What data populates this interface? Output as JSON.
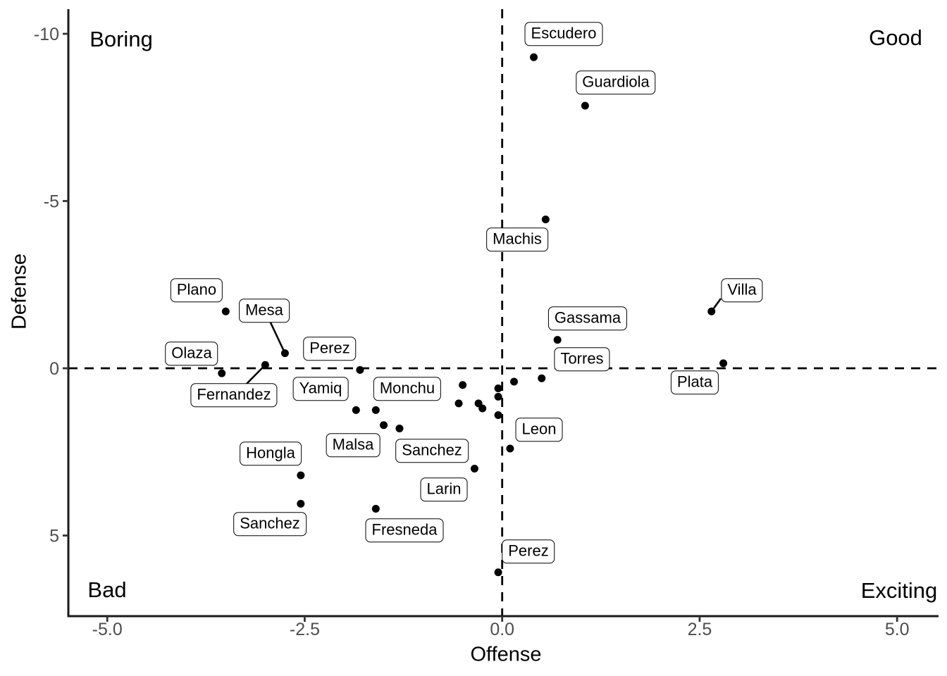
{
  "colors": {
    "background": "#ffffff",
    "point": "#000000",
    "axis_line": "#1a1a1a",
    "tick_mark": "#333333",
    "tick_label": "#4d4d4d",
    "reference_line": "#000000",
    "label_box_fill": "#ffffff",
    "label_box_border": "#000000"
  },
  "chart_data": {
    "type": "scatter",
    "title": "",
    "xlabel": "Offense",
    "ylabel": "Defense",
    "x_axis": {
      "range": [
        -5.5,
        5.5
      ],
      "ticks": [
        {
          "value": -5,
          "label": "-5.0"
        },
        {
          "value": -2.5,
          "label": "-2.5"
        },
        {
          "value": 0,
          "label": "0.0"
        },
        {
          "value": 2.5,
          "label": "2.5"
        },
        {
          "value": 5,
          "label": "5.0"
        }
      ]
    },
    "y_axis": {
      "reversed": true,
      "range_top_to_bottom": [
        -10.7,
        7.4
      ],
      "ticks": [
        {
          "value": -10,
          "label": "-10"
        },
        {
          "value": -5,
          "label": "-5"
        },
        {
          "value": 0,
          "label": "0"
        },
        {
          "value": 5,
          "label": "5"
        }
      ]
    },
    "reference_lines": {
      "horizontal_at_y": 0,
      "vertical_at_x": 0,
      "style": "dashed"
    },
    "quadrants": {
      "top_left": "Boring",
      "top_right": "Good",
      "bottom_left": "Bad",
      "bottom_right": "Exciting"
    },
    "grid": false,
    "legend": "none",
    "points": [
      {
        "id": "escudero",
        "label": "Escudero",
        "x": 0.4,
        "y": -9.3
      },
      {
        "id": "guardiola",
        "label": "Guardiola",
        "x": 1.05,
        "y": -7.85
      },
      {
        "id": "machis",
        "label": "Machis",
        "x": 0.55,
        "y": -4.45
      },
      {
        "id": "villa",
        "label": "Villa",
        "x": 2.65,
        "y": -1.7
      },
      {
        "id": "plano",
        "label": "Plano",
        "x": -3.5,
        "y": -1.7
      },
      {
        "id": "gassama",
        "label": "Gassama",
        "x": 0.7,
        "y": -0.85
      },
      {
        "id": "mesa",
        "label": "Mesa",
        "x": -2.75,
        "y": -0.45
      },
      {
        "id": "plata",
        "label": "Plata",
        "x": 2.8,
        "y": -0.15
      },
      {
        "id": "fernandez",
        "label": "Fernandez",
        "x": -3.0,
        "y": -0.1
      },
      {
        "id": "perez_a",
        "label": "Perez",
        "x": -1.8,
        "y": 0.05
      },
      {
        "id": "olaza",
        "label": "Olaza",
        "x": -3.55,
        "y": 0.15
      },
      {
        "id": "torres",
        "label": "Torres",
        "x": 0.5,
        "y": 0.3
      },
      {
        "id": "u1",
        "label": null,
        "x": -0.5,
        "y": 0.5
      },
      {
        "id": "u2",
        "label": null,
        "x": 0.15,
        "y": 0.4
      },
      {
        "id": "u3",
        "label": null,
        "x": -0.05,
        "y": 0.6
      },
      {
        "id": "u4",
        "label": null,
        "x": -0.05,
        "y": 0.85
      },
      {
        "id": "u5",
        "label": null,
        "x": -0.55,
        "y": 1.05
      },
      {
        "id": "u6",
        "label": null,
        "x": -0.3,
        "y": 1.05
      },
      {
        "id": "u7",
        "label": null,
        "x": -0.25,
        "y": 1.2
      },
      {
        "id": "u8",
        "label": null,
        "x": -0.05,
        "y": 1.4
      },
      {
        "id": "yamiq",
        "label": "Yamiq",
        "x": -1.85,
        "y": 1.25
      },
      {
        "id": "monchu",
        "label": "Monchu",
        "x": -1.6,
        "y": 1.25
      },
      {
        "id": "malsa",
        "label": "Malsa",
        "x": -1.5,
        "y": 1.7
      },
      {
        "id": "sanchez_a",
        "label": "Sanchez",
        "x": -1.3,
        "y": 1.8
      },
      {
        "id": "leon",
        "label": "Leon",
        "x": 0.1,
        "y": 2.4
      },
      {
        "id": "larin",
        "label": "Larin",
        "x": -0.35,
        "y": 3.0
      },
      {
        "id": "hongla",
        "label": "Hongla",
        "x": -2.55,
        "y": 3.2
      },
      {
        "id": "sanchez_b",
        "label": "Sanchez",
        "x": -2.55,
        "y": 4.05
      },
      {
        "id": "fresneda",
        "label": "Fresneda",
        "x": -1.6,
        "y": 4.2
      },
      {
        "id": "perez_b",
        "label": "Perez",
        "x": -0.05,
        "y": 6.1
      }
    ]
  }
}
